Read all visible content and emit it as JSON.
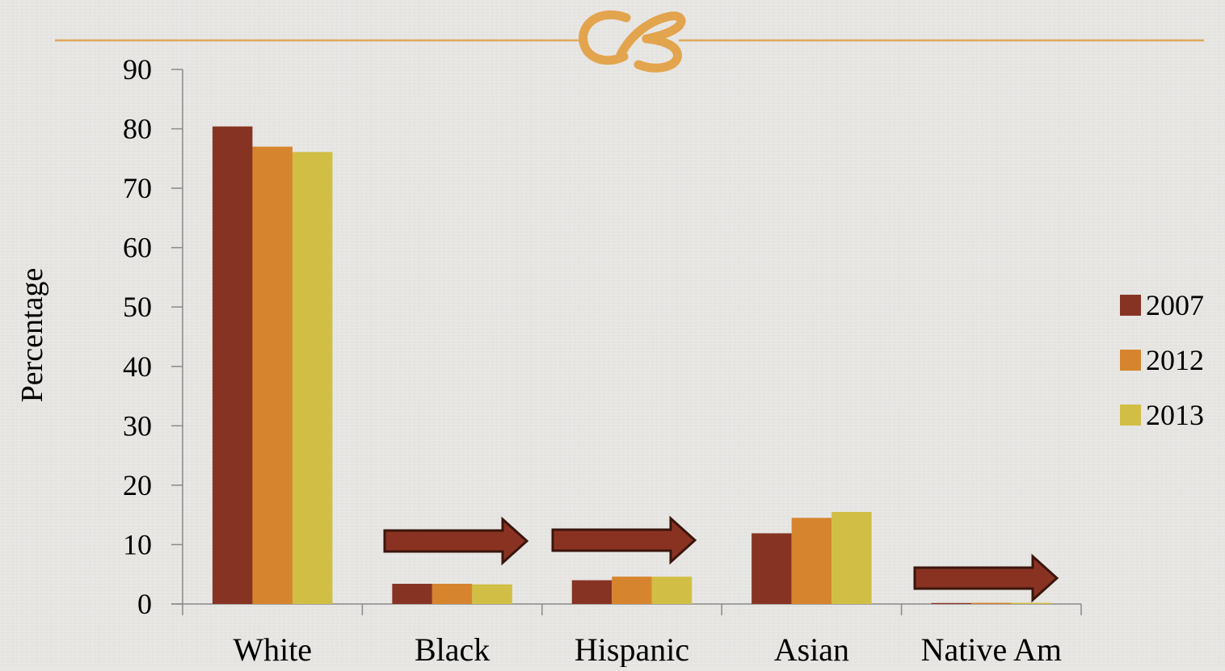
{
  "colors": {
    "background": "#e8e7e4",
    "divider": "#e0a85a",
    "ornament": "#e3a44e",
    "arrow_fill": "#8a3222",
    "arrow_stroke": "#3a150c"
  },
  "header": {
    "ornament_icon": "decorative-swash-icon"
  },
  "chart_data": {
    "type": "bar",
    "title": "",
    "xlabel": "",
    "ylabel": "Percentage",
    "ylim": [
      0,
      90
    ],
    "yticks": [
      0,
      10,
      20,
      30,
      40,
      50,
      60,
      70,
      80,
      90
    ],
    "categories": [
      "White",
      "Black",
      "Hispanic",
      "Asian",
      "Native Am"
    ],
    "series": [
      {
        "name": "2007",
        "color": "#873323",
        "values": [
          80.4,
          3.4,
          4.0,
          11.9,
          0.1
        ]
      },
      {
        "name": "2012",
        "color": "#d6852e",
        "values": [
          77.0,
          3.4,
          4.6,
          14.5,
          0.2
        ]
      },
      {
        "name": "2013",
        "color": "#d0bf44",
        "values": [
          76.1,
          3.3,
          4.6,
          15.5,
          0.2
        ]
      }
    ],
    "legend_position": "right",
    "grid": false,
    "annotations": [
      {
        "type": "arrow",
        "direction": "right",
        "category": "Black"
      },
      {
        "type": "arrow",
        "direction": "right",
        "category": "Hispanic"
      },
      {
        "type": "arrow",
        "direction": "right",
        "category": "Native Am"
      }
    ]
  }
}
